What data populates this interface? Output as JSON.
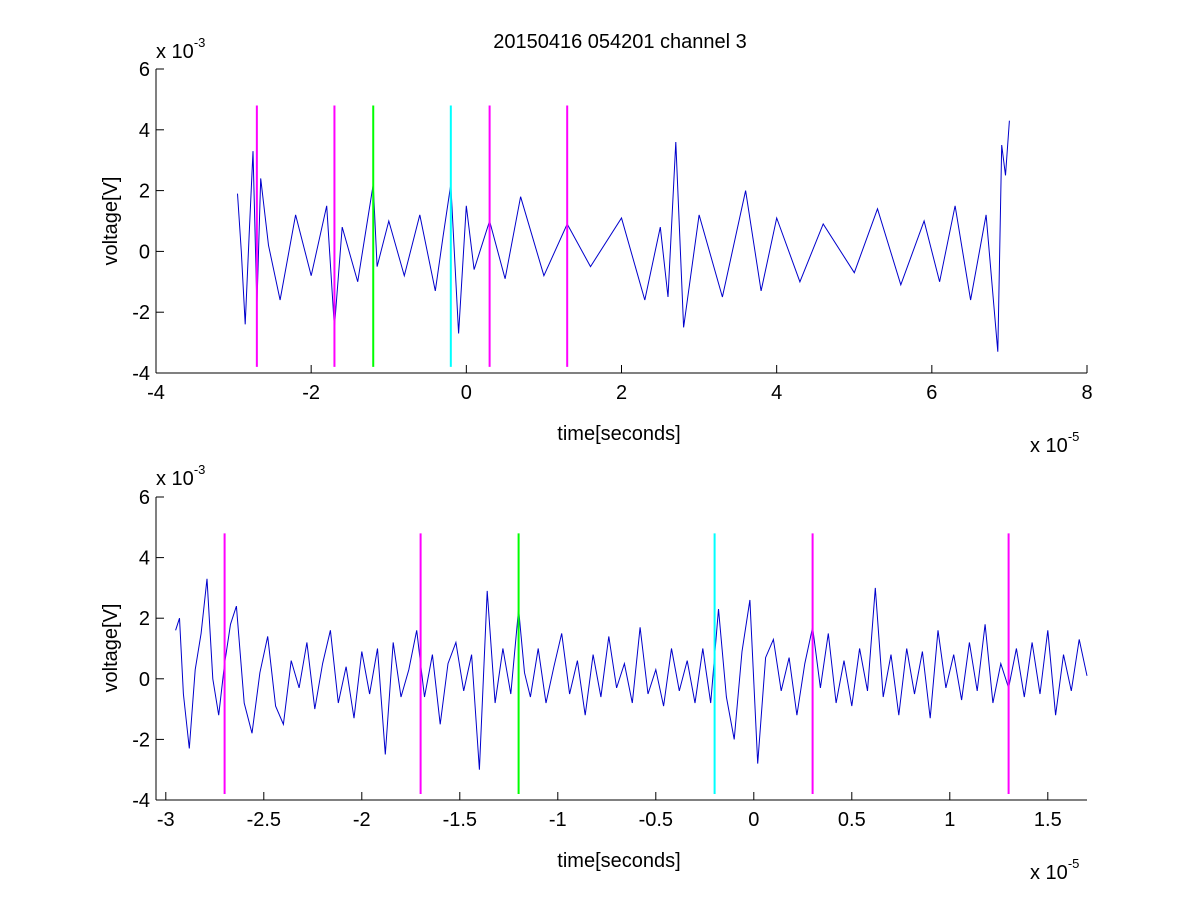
{
  "figure": {
    "title": "20150416 054201 channel 3"
  },
  "chart_data": [
    {
      "type": "line",
      "xlabel": "time[seconds]",
      "ylabel": "voltage[V]",
      "xlim": [
        -4,
        8
      ],
      "ylim": [
        -4,
        6
      ],
      "xticks": [
        -4,
        -2,
        0,
        2,
        4,
        6,
        8
      ],
      "xtick_labels": [
        "-4",
        "-2",
        "0",
        "2",
        "4",
        "6",
        "8"
      ],
      "yticks": [
        -4,
        -2,
        0,
        2,
        4,
        6
      ],
      "ytick_labels": [
        "-4",
        "-2",
        "0",
        "2",
        "4",
        "6"
      ],
      "x_exponent": {
        "base": "x 10",
        "power": "-5"
      },
      "y_exponent": {
        "base": "x 10",
        "power": "-3"
      },
      "series": [
        {
          "color": "#0000cc",
          "x": [
            -2.95,
            -2.9,
            -2.85,
            -2.8,
            -2.75,
            -2.7,
            -2.65,
            -2.55,
            -2.4,
            -2.2,
            -2.0,
            -1.8,
            -1.7,
            -1.6,
            -1.4,
            -1.2,
            -1.15,
            -1.0,
            -0.8,
            -0.6,
            -0.4,
            -0.3,
            -0.2,
            -0.1,
            0.0,
            0.1,
            0.3,
            0.5,
            0.7,
            1.0,
            1.3,
            1.6,
            2.0,
            2.3,
            2.5,
            2.6,
            2.7,
            2.8,
            3.0,
            3.3,
            3.6,
            3.8,
            4.0,
            4.3,
            4.6,
            5.0,
            5.3,
            5.6,
            5.9,
            6.1,
            6.3,
            6.5,
            6.7,
            6.85,
            6.9,
            6.95,
            7.0
          ],
          "y": [
            1.9,
            0.0,
            -2.4,
            0.5,
            3.3,
            -1.8,
            2.4,
            0.2,
            -1.6,
            1.2,
            -0.8,
            1.5,
            -2.5,
            0.8,
            -1.0,
            2.2,
            -0.5,
            1.0,
            -0.8,
            1.2,
            -1.3,
            0.5,
            2.2,
            -2.7,
            1.5,
            -0.6,
            1.0,
            -0.9,
            1.8,
            -0.8,
            0.9,
            -0.5,
            1.1,
            -1.6,
            0.8,
            -1.5,
            3.6,
            -2.5,
            1.2,
            -1.5,
            2.0,
            -1.3,
            1.1,
            -1.0,
            0.9,
            -0.7,
            1.4,
            -1.1,
            1.0,
            -1.0,
            1.5,
            -1.6,
            1.2,
            -3.3,
            3.5,
            2.5,
            4.3
          ]
        }
      ],
      "vlines": [
        {
          "x": -2.7,
          "color": "#ff00ff"
        },
        {
          "x": -1.7,
          "color": "#ff00ff"
        },
        {
          "x": -1.2,
          "color": "#00ff00"
        },
        {
          "x": -0.2,
          "color": "#00ffff"
        },
        {
          "x": 0.3,
          "color": "#ff00ff"
        },
        {
          "x": 1.3,
          "color": "#ff00ff"
        }
      ]
    },
    {
      "type": "line",
      "xlabel": "time[seconds]",
      "ylabel": "voltage[V]",
      "xlim": [
        -3.05,
        1.7
      ],
      "ylim": [
        -4,
        6
      ],
      "xticks": [
        -3,
        -2.5,
        -2,
        -1.5,
        -1,
        -0.5,
        0,
        0.5,
        1,
        1.5
      ],
      "xtick_labels": [
        "-3",
        "-2.5",
        "-2",
        "-1.5",
        "-1",
        "-0.5",
        "0",
        "0.5",
        "1",
        "1.5"
      ],
      "yticks": [
        -4,
        -2,
        0,
        2,
        4,
        6
      ],
      "ytick_labels": [
        "-4",
        "-2",
        "0",
        "2",
        "4",
        "6"
      ],
      "x_exponent": {
        "base": "x 10",
        "power": "-5"
      },
      "y_exponent": {
        "base": "x 10",
        "power": "-3"
      },
      "series": [
        {
          "color": "#0000cc",
          "x": [
            -2.95,
            -2.93,
            -2.91,
            -2.88,
            -2.85,
            -2.82,
            -2.79,
            -2.76,
            -2.73,
            -2.7,
            -2.67,
            -2.64,
            -2.6,
            -2.56,
            -2.52,
            -2.48,
            -2.44,
            -2.4,
            -2.36,
            -2.32,
            -2.28,
            -2.24,
            -2.2,
            -2.16,
            -2.12,
            -2.08,
            -2.04,
            -2.0,
            -1.96,
            -1.92,
            -1.88,
            -1.84,
            -1.8,
            -1.76,
            -1.72,
            -1.68,
            -1.64,
            -1.6,
            -1.56,
            -1.52,
            -1.48,
            -1.44,
            -1.4,
            -1.36,
            -1.32,
            -1.28,
            -1.24,
            -1.2,
            -1.17,
            -1.14,
            -1.1,
            -1.06,
            -1.02,
            -0.98,
            -0.94,
            -0.9,
            -0.86,
            -0.82,
            -0.78,
            -0.74,
            -0.7,
            -0.66,
            -0.62,
            -0.58,
            -0.54,
            -0.5,
            -0.46,
            -0.42,
            -0.38,
            -0.34,
            -0.3,
            -0.26,
            -0.22,
            -0.18,
            -0.14,
            -0.1,
            -0.06,
            -0.02,
            0.02,
            0.06,
            0.1,
            0.14,
            0.18,
            0.22,
            0.26,
            0.3,
            0.34,
            0.38,
            0.42,
            0.46,
            0.5,
            0.54,
            0.58,
            0.62,
            0.66,
            0.7,
            0.74,
            0.78,
            0.82,
            0.86,
            0.9,
            0.94,
            0.98,
            1.02,
            1.06,
            1.1,
            1.14,
            1.18,
            1.22,
            1.26,
            1.3,
            1.34,
            1.38,
            1.42,
            1.46,
            1.5,
            1.54,
            1.58,
            1.62,
            1.66,
            1.7
          ],
          "y": [
            1.6,
            2.0,
            -0.5,
            -2.3,
            0.3,
            1.5,
            3.3,
            0.0,
            -1.2,
            0.5,
            1.8,
            2.4,
            -0.8,
            -1.8,
            0.2,
            1.4,
            -0.9,
            -1.5,
            0.6,
            -0.3,
            1.2,
            -1.0,
            0.5,
            1.6,
            -0.8,
            0.4,
            -1.3,
            0.9,
            -0.5,
            1.0,
            -2.5,
            1.2,
            -0.6,
            0.3,
            1.6,
            -0.6,
            0.8,
            -1.5,
            0.5,
            1.2,
            -0.4,
            0.8,
            -3.0,
            2.9,
            -0.8,
            1.0,
            -0.5,
            2.3,
            0.2,
            -0.6,
            1.0,
            -0.8,
            0.4,
            1.5,
            -0.5,
            0.6,
            -1.2,
            0.8,
            -0.6,
            1.4,
            -0.3,
            0.5,
            -0.8,
            1.7,
            -0.5,
            0.3,
            -0.9,
            1.0,
            -0.4,
            0.6,
            -0.8,
            1.0,
            -0.8,
            2.3,
            -0.6,
            -2.0,
            0.9,
            2.6,
            -2.8,
            0.7,
            1.3,
            -0.4,
            0.7,
            -1.2,
            0.5,
            1.7,
            -0.3,
            1.5,
            -0.8,
            0.6,
            -0.9,
            1.0,
            -0.4,
            3.0,
            -0.6,
            0.8,
            -1.2,
            1.0,
            -0.5,
            0.9,
            -1.3,
            1.6,
            -0.3,
            0.8,
            -0.7,
            1.2,
            -0.4,
            1.8,
            -0.8,
            0.5,
            -0.3,
            1.0,
            -0.6,
            1.2,
            -0.5,
            1.6,
            -1.2,
            0.8,
            -0.4,
            1.3,
            0.1
          ]
        }
      ],
      "vlines": [
        {
          "x": -2.7,
          "color": "#ff00ff"
        },
        {
          "x": -1.7,
          "color": "#ff00ff"
        },
        {
          "x": -1.2,
          "color": "#00ff00"
        },
        {
          "x": -0.2,
          "color": "#00ffff"
        },
        {
          "x": 0.3,
          "color": "#ff00ff"
        },
        {
          "x": 1.3,
          "color": "#ff00ff"
        }
      ]
    }
  ]
}
